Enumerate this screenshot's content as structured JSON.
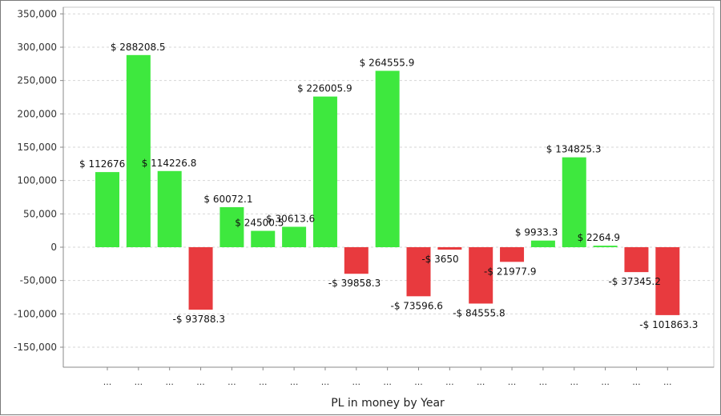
{
  "chart_data": {
    "type": "bar",
    "title": "",
    "xlabel": "PL in money by Year",
    "ylabel": "",
    "ylim": [
      -180000,
      360000
    ],
    "yticks": [
      350000,
      300000,
      250000,
      200000,
      150000,
      100000,
      50000,
      0,
      -50000,
      -100000,
      -150000
    ],
    "ytick_labels": [
      "350,000",
      "300,000",
      "250,000",
      "200,000",
      "150,000",
      "100,000",
      "50,000",
      "0",
      "-50,000",
      "-100,000",
      "-150,000"
    ],
    "grid": true,
    "categories": [
      "...",
      "...",
      "...",
      "...",
      "...",
      "...",
      "...",
      "...",
      "...",
      "...",
      "...",
      "...",
      "...",
      "...",
      "...",
      "...",
      "...",
      "...",
      "..."
    ],
    "values": [
      112676,
      288208.5,
      114226.8,
      -93788.3,
      60072.1,
      24500.5,
      30613.6,
      226005.9,
      -39858.3,
      264555.9,
      -73596.6,
      -3650,
      -84555.8,
      -21977.9,
      9933.3,
      134825.3,
      2264.9,
      -37345.2,
      -101863.3
    ],
    "data_labels": [
      "$ 112676",
      "$ 288208.5",
      "$ 114226.8",
      "-$ 93788.3",
      "$ 60072.1",
      "$ 24500.5",
      "$ 30613.6",
      "$ 226005.9",
      "-$ 39858.3",
      "$ 264555.9",
      "-$ 73596.6",
      "-$ 3650",
      "-$ 84555.8",
      "-$ 21977.9",
      "$ 9933.3",
      "$ 134825.3",
      "$ 2264.9",
      "-$ 37345.2",
      "-$ 101863.3"
    ],
    "colors": {
      "positive": "#3ee83e",
      "negative": "#e83a3e"
    }
  }
}
